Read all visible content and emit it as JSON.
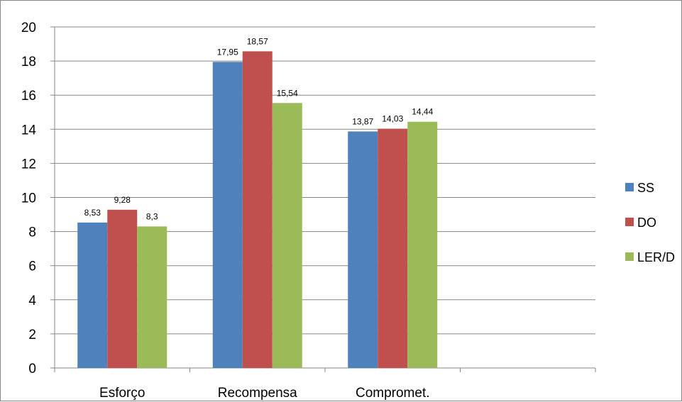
{
  "chart_data": {
    "type": "bar",
    "categories": [
      "Esforço",
      "Recompensa",
      "Compromet.",
      ""
    ],
    "series": [
      {
        "name": "SS",
        "values": [
          8.53,
          17.95,
          13.87,
          null
        ],
        "labels": [
          "8,53",
          "17,95",
          "13,87",
          ""
        ],
        "color": "#4F81BD"
      },
      {
        "name": "DO",
        "values": [
          9.28,
          18.57,
          14.03,
          null
        ],
        "labels": [
          "9,28",
          "18,57",
          "14,03",
          ""
        ],
        "color": "#C0504D"
      },
      {
        "name": "LER/D",
        "values": [
          8.3,
          15.54,
          14.44,
          null
        ],
        "labels": [
          "8,3",
          "15,54",
          "14,44",
          ""
        ],
        "color": "#9BBB59"
      }
    ],
    "y_ticks": [
      "0",
      "2",
      "4",
      "6",
      "8",
      "10",
      "12",
      "14",
      "16",
      "18",
      "20"
    ],
    "ylim": [
      0,
      20
    ],
    "y_step": 2,
    "grid": true,
    "legend": "right",
    "gridline_color": "#868686",
    "axis_color": "#868686"
  }
}
